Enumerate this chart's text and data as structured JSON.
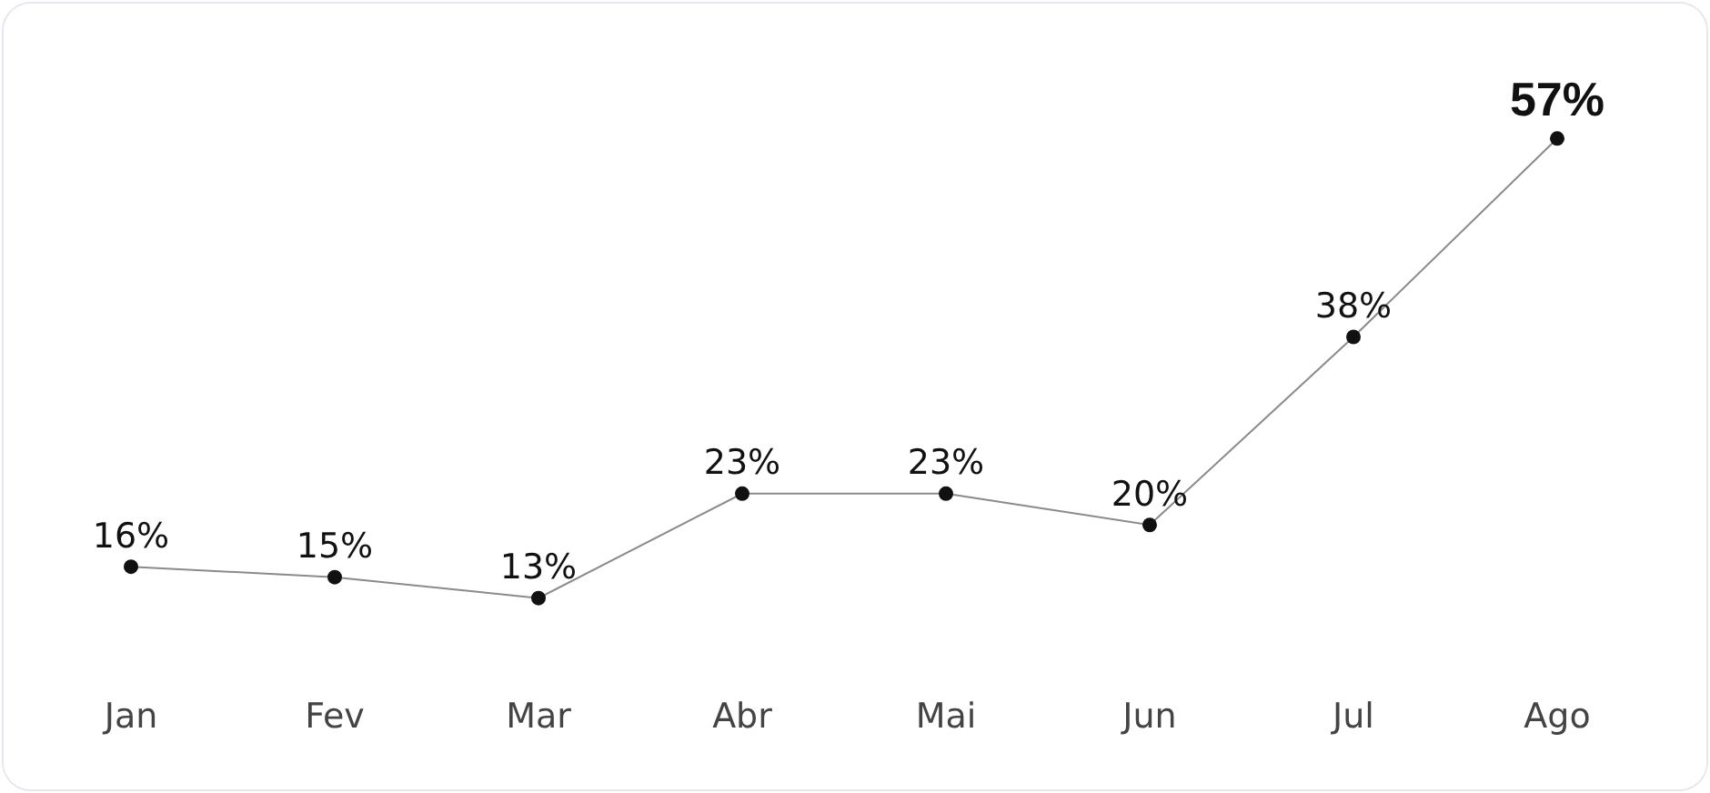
{
  "chart_data": {
    "type": "line",
    "categories": [
      "Jan",
      "Fev",
      "Mar",
      "Abr",
      "Mai",
      "Jun",
      "Jul",
      "Ago"
    ],
    "values": [
      16,
      15,
      13,
      23,
      23,
      20,
      38,
      57
    ],
    "value_labels": [
      "16%",
      "15%",
      "13%",
      "23%",
      "23%",
      "20%",
      "38%",
      "57%"
    ],
    "color": "#111111",
    "marker": "circle",
    "line_style": "solid"
  }
}
